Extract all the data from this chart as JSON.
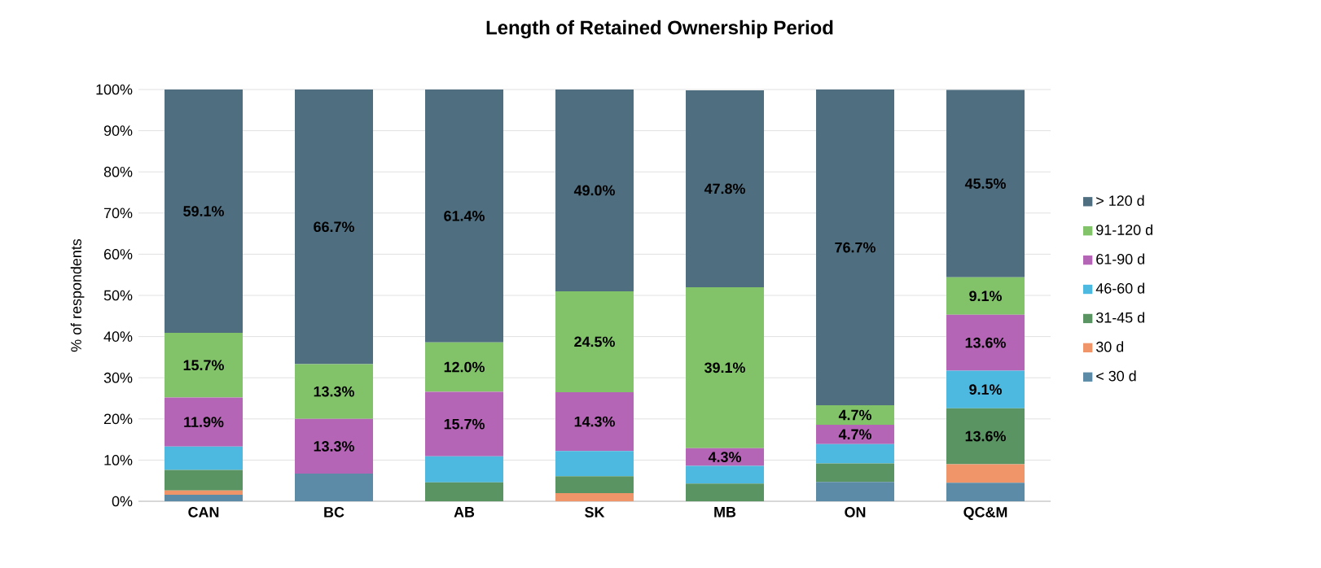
{
  "chart_data": {
    "type": "bar",
    "stacked": true,
    "title": "Length of Retained Ownership Period",
    "ylabel": "% of respondents",
    "categories": [
      "CAN",
      "BC",
      "AB",
      "SK",
      "MB",
      "ON",
      "QC&M"
    ],
    "ylim": [
      0,
      100
    ],
    "yticks": [
      {
        "value": 0,
        "label": "0%"
      },
      {
        "value": 10,
        "label": "10%"
      },
      {
        "value": 20,
        "label": "20%"
      },
      {
        "value": 30,
        "label": "30%"
      },
      {
        "value": 40,
        "label": "40%"
      },
      {
        "value": 50,
        "label": "50%"
      },
      {
        "value": 60,
        "label": "60%"
      },
      {
        "value": 70,
        "label": "70%"
      },
      {
        "value": 80,
        "label": "80%"
      },
      {
        "value": 90,
        "label": "90%"
      },
      {
        "value": 100,
        "label": "100%"
      }
    ],
    "grid": "y",
    "legend": "right",
    "series": [
      {
        "name": "< 30 d",
        "color": "#5b8ba6",
        "values": [
          1.6,
          6.7,
          0,
          0,
          0,
          4.7,
          4.5
        ],
        "value_labels": [
          null,
          null,
          null,
          null,
          null,
          null,
          null
        ]
      },
      {
        "name": "30 d",
        "color": "#f0956a",
        "values": [
          1.0,
          0,
          0,
          2.0,
          0,
          0,
          4.5
        ],
        "value_labels": [
          null,
          null,
          null,
          null,
          null,
          null,
          null
        ]
      },
      {
        "name": "31-45 d",
        "color": "#5a9462",
        "values": [
          5.0,
          0,
          4.6,
          4.1,
          4.3,
          4.5,
          13.6
        ],
        "value_labels": [
          null,
          null,
          null,
          null,
          null,
          null,
          "13.6%"
        ]
      },
      {
        "name": "46-60 d",
        "color": "#4db8e0",
        "values": [
          5.7,
          0,
          6.3,
          6.1,
          4.3,
          4.7,
          9.1
        ],
        "value_labels": [
          null,
          null,
          null,
          null,
          null,
          null,
          "9.1%"
        ]
      },
      {
        "name": "61-90 d",
        "color": "#b565b5",
        "values": [
          11.9,
          13.3,
          15.7,
          14.3,
          4.3,
          4.7,
          13.6
        ],
        "value_labels": [
          "11.9%",
          "13.3%",
          "15.7%",
          "14.3%",
          "4.3%",
          "4.7%",
          "13.6%"
        ]
      },
      {
        "name": "91-120 d",
        "color": "#82c36a",
        "values": [
          15.7,
          13.3,
          12.0,
          24.5,
          39.1,
          4.7,
          9.1
        ],
        "value_labels": [
          "15.7%",
          "13.3%",
          "12.0%",
          "24.5%",
          "39.1%",
          "4.7%",
          "9.1%"
        ]
      },
      {
        "name": "> 120 d",
        "color": "#4f6f80",
        "values": [
          59.1,
          66.7,
          61.4,
          49.0,
          47.8,
          76.7,
          45.5
        ],
        "value_labels": [
          "59.1%",
          "66.7%",
          "61.4%",
          "49.0%",
          "47.8%",
          "76.7%",
          "45.5%"
        ]
      }
    ]
  }
}
